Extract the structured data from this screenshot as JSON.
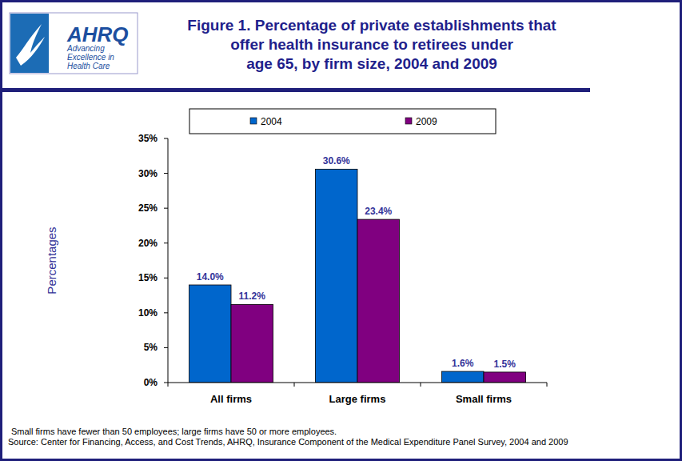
{
  "logo": {
    "name": "AHRQ",
    "tagline": "Advancing\nExcellence in\nHealth Care"
  },
  "chart_data": {
    "type": "bar",
    "title": "Figure 1. Percentage of private establishments that\noffer health insurance to retirees under\nage 65, by firm size, 2004 and 2009",
    "y_label": "Percentages",
    "categories": [
      "All firms",
      "Large firms",
      "Small firms"
    ],
    "series": [
      {
        "name": "2004",
        "color": "#0066cc",
        "values": [
          14.0,
          30.6,
          1.6
        ],
        "value_labels": [
          "14.0%",
          "30.6%",
          "1.6%"
        ]
      },
      {
        "name": "2009",
        "color": "#800080",
        "values": [
          11.2,
          23.4,
          1.5
        ],
        "value_labels": [
          "11.2%",
          "23.4%",
          "1.5%"
        ]
      }
    ],
    "ylim": [
      0,
      35
    ],
    "yticks": [
      {
        "value": 0,
        "label": "0%"
      },
      {
        "value": 5,
        "label": "5%"
      },
      {
        "value": 10,
        "label": "10%"
      },
      {
        "value": 15,
        "label": "15%"
      },
      {
        "value": 20,
        "label": "20%"
      },
      {
        "value": 25,
        "label": "25%"
      },
      {
        "value": 30,
        "label": "30%"
      },
      {
        "value": 35,
        "label": "35%"
      }
    ],
    "grid": false,
    "legend": "top",
    "data_labels": true,
    "annotations": [
      "Small firms have fewer than 50 employees; large firms have 50 or more employees.",
      "Source: Center for Financing, Access, and Cost Trends, AHRQ, Insurance Component of the Medical Expenditure Panel Survey,  2004 and 2009"
    ]
  }
}
